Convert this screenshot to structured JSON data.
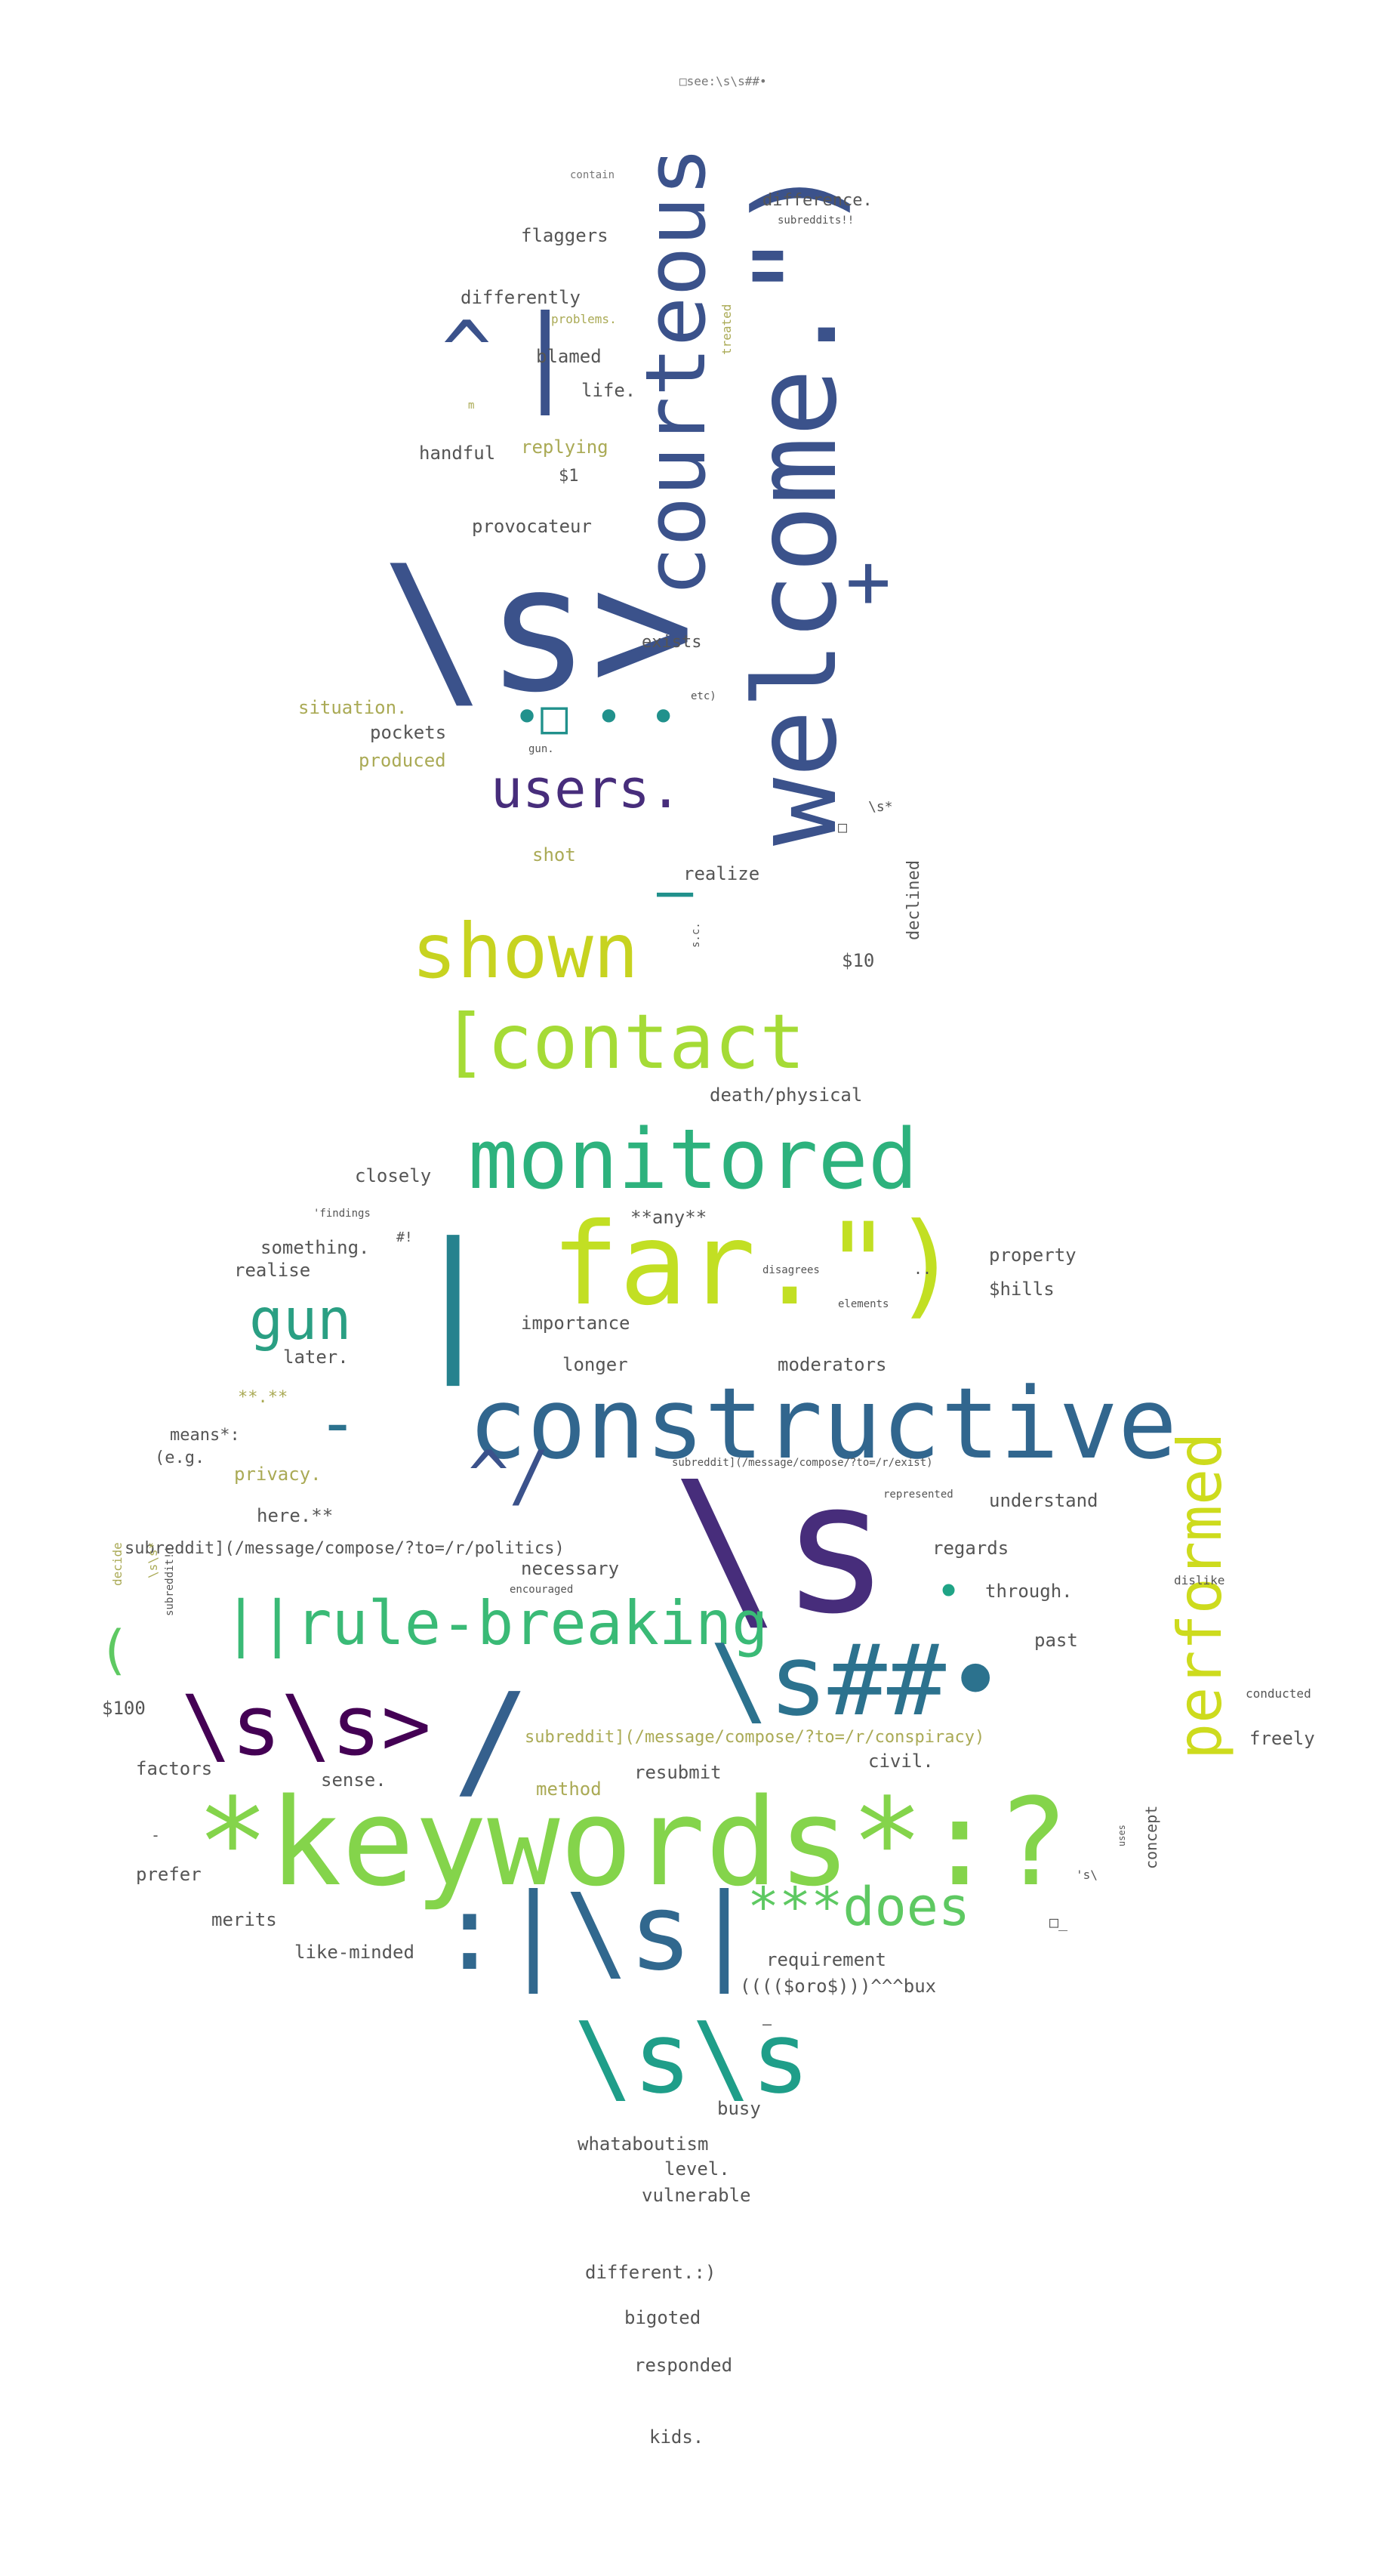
{
  "words": [
    {
      "text": "\\s>",
      "color": "#3b528b"
    },
    {
      "text": "welcome.\")",
      "color": "#3b528b"
    },
    {
      "text": "courteous",
      "color": "#3b528b"
    },
    {
      "text": "+",
      "color": "#3b528b"
    },
    {
      "text": "^",
      "color": "#3b528b"
    },
    {
      "text": "|",
      "color": "#3b528b"
    },
    {
      "text": "users.",
      "color": "#472d7b"
    },
    {
      "text": "•□ • •",
      "color": "#21918c"
    },
    {
      "text": "—",
      "color": "#21918c"
    },
    {
      "text": "shown",
      "color": "#c7d320"
    },
    {
      "text": "[contact",
      "color": "#a5db36"
    },
    {
      "text": "monitored",
      "color": "#2db27d"
    },
    {
      "text": "far.\")",
      "color": "#c2df23"
    },
    {
      "text": "gun",
      "color": "#2a9f83"
    },
    {
      "text": "|",
      "color": "#26828e"
    },
    {
      "text": "-",
      "color": "#2c728e"
    },
    {
      "text": "constructive",
      "color": "#31668e"
    },
    {
      "text": "^/",
      "color": "#3b528b"
    },
    {
      "text": "\\s",
      "color": "#472d7b"
    },
    {
      "text": "•",
      "color": "#20a486"
    },
    {
      "text": "performed",
      "color": "#cddb1d"
    },
    {
      "text": "||rule-breaking",
      "color": "#3aba76"
    },
    {
      "text": "(",
      "color": "#5ec962"
    },
    {
      "text": "\\s##•",
      "color": "#2c728e"
    },
    {
      "text": "\\s\\s>",
      "color": "#440154"
    },
    {
      "text": "/",
      "color": "#35608d"
    },
    {
      "text": "*keywords*:?",
      "color": "#84d44b"
    },
    {
      "text": ":|\\s|",
      "color": "#31688e"
    },
    {
      "text": "***does",
      "color": "#5ec962"
    },
    {
      "text": "\\s\\s",
      "color": "#1f9e89"
    },
    {
      "text": "□see:\\s\\s##•",
      "color": "#777777"
    },
    {
      "text": "contain",
      "color": "#777777"
    },
    {
      "text": "difference.",
      "color": "#555555"
    },
    {
      "text": "subreddits!!",
      "color": "#555555"
    },
    {
      "text": "flaggers",
      "color": "#555555"
    },
    {
      "text": "differently",
      "color": "#555555"
    },
    {
      "text": "problems.",
      "color": "#aaaa55"
    },
    {
      "text": "treated",
      "color": "#aaaa55"
    },
    {
      "text": "blamed",
      "color": "#555555"
    },
    {
      "text": "life.",
      "color": "#555555"
    },
    {
      "text": "m",
      "color": "#aaaa55"
    },
    {
      "text": "handful",
      "color": "#555555"
    },
    {
      "text": "replying",
      "color": "#aaaa55"
    },
    {
      "text": "$1",
      "color": "#555555"
    },
    {
      "text": "provocateur",
      "color": "#555555"
    },
    {
      "text": "exists",
      "color": "#555555"
    },
    {
      "text": "situation.",
      "color": "#aaaa55"
    },
    {
      "text": "etc)",
      "color": "#555555"
    },
    {
      "text": "pockets",
      "color": "#555555"
    },
    {
      "text": "produced",
      "color": "#aaaa55"
    },
    {
      "text": "gun.",
      "color": "#555555"
    },
    {
      "text": "shot",
      "color": "#aaaa55"
    },
    {
      "text": "realize",
      "color": "#555555"
    },
    {
      "text": "□",
      "color": "#555555"
    },
    {
      "text": "\\s*",
      "color": "#555555"
    },
    {
      "text": "declined",
      "color": "#555555"
    },
    {
      "text": "s.c.",
      "color": "#555555"
    },
    {
      "text": "$10",
      "color": "#555555"
    },
    {
      "text": "death/physical",
      "color": "#555555"
    },
    {
      "text": "closely",
      "color": "#555555"
    },
    {
      "text": "'findings",
      "color": "#555555"
    },
    {
      "text": "#!",
      "color": "#555555"
    },
    {
      "text": "**any**",
      "color": "#555555"
    },
    {
      "text": "something.",
      "color": "#555555"
    },
    {
      "text": "realise",
      "color": "#555555"
    },
    {
      "text": "disagrees",
      "color": "#555555"
    },
    {
      "text": "..",
      "color": "#555555"
    },
    {
      "text": "property",
      "color": "#555555"
    },
    {
      "text": "elements",
      "color": "#555555"
    },
    {
      "text": "importance",
      "color": "#555555"
    },
    {
      "text": "$hills",
      "color": "#555555"
    },
    {
      "text": "later.",
      "color": "#555555"
    },
    {
      "text": "longer",
      "color": "#555555"
    },
    {
      "text": "moderators",
      "color": "#555555"
    },
    {
      "text": "**.**",
      "color": "#aaaa55"
    },
    {
      "text": "means*:",
      "color": "#555555"
    },
    {
      "text": "(e.g.",
      "color": "#555555"
    },
    {
      "text": "privacy.",
      "color": "#aaaa55"
    },
    {
      "text": "subreddit](/message/compose/?to=/r/exist)",
      "color": "#555555"
    },
    {
      "text": "represented",
      "color": "#555555"
    },
    {
      "text": "understand",
      "color": "#555555"
    },
    {
      "text": "here.**",
      "color": "#555555"
    },
    {
      "text": "subreddit](/message/compose/?to=/r/politics)",
      "color": "#555555"
    },
    {
      "text": "regards",
      "color": "#555555"
    },
    {
      "text": "necessary",
      "color": "#555555"
    },
    {
      "text": "through.",
      "color": "#555555"
    },
    {
      "text": "dislike",
      "color": "#555555"
    },
    {
      "text": "encouraged",
      "color": "#555555"
    },
    {
      "text": "decide",
      "color": "#aaaa55"
    },
    {
      "text": "\\s\\s*",
      "color": "#aaaa55"
    },
    {
      "text": "subreddit!!",
      "color": "#555555"
    },
    {
      "text": "past",
      "color": "#555555"
    },
    {
      "text": "conducted",
      "color": "#555555"
    },
    {
      "text": "$100",
      "color": "#555555"
    },
    {
      "text": "subreddit](/message/compose/?to=/r/conspiracy)",
      "color": "#aaaa55"
    },
    {
      "text": "freely",
      "color": "#555555"
    },
    {
      "text": "factors",
      "color": "#555555"
    },
    {
      "text": "resubmit",
      "color": "#555555"
    },
    {
      "text": "civil.",
      "color": "#555555"
    },
    {
      "text": "sense.",
      "color": "#555555"
    },
    {
      "text": "method",
      "color": "#aaaa55"
    },
    {
      "text": "concept",
      "color": "#555555"
    },
    {
      "text": "uses",
      "color": "#555555"
    },
    {
      "text": "-",
      "color": "#555555"
    },
    {
      "text": "prefer",
      "color": "#555555"
    },
    {
      "text": "'s\\",
      "color": "#555555"
    },
    {
      "text": "merits",
      "color": "#555555"
    },
    {
      "text": "□_",
      "color": "#555555"
    },
    {
      "text": "like-minded",
      "color": "#555555"
    },
    {
      "text": "requirement",
      "color": "#555555"
    },
    {
      "text": "(((($oro$)))^^^bux",
      "color": "#555555"
    },
    {
      "text": "—",
      "color": "#555555"
    },
    {
      "text": "busy",
      "color": "#555555"
    },
    {
      "text": "whataboutism",
      "color": "#555555"
    },
    {
      "text": "level.",
      "color": "#555555"
    },
    {
      "text": "vulnerable",
      "color": "#555555"
    },
    {
      "text": "different.:)",
      "color": "#555555"
    },
    {
      "text": "bigoted",
      "color": "#555555"
    },
    {
      "text": "responded",
      "color": "#555555"
    },
    {
      "text": "kids.",
      "color": "#555555"
    }
  ]
}
